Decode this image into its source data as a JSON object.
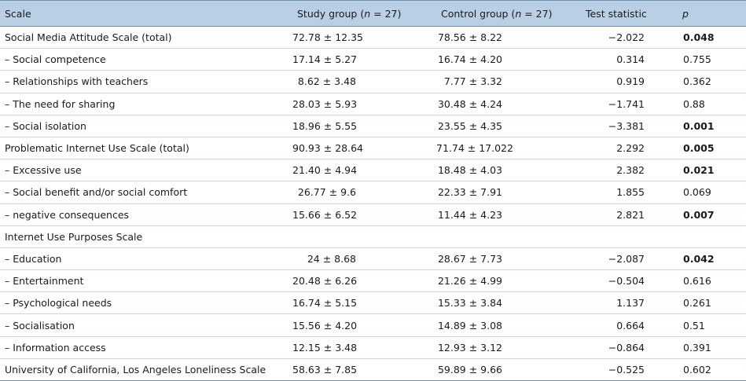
{
  "table": {
    "headers": {
      "scale": "Scale",
      "study": "Study group (",
      "study_n": "n",
      "study_suffix": " = 27)",
      "control": "Control group (",
      "control_n": "n",
      "control_suffix": " = 27)",
      "stat": "Test statistic",
      "p": "p"
    },
    "rows": [
      {
        "scale": "Social Media Attitude Scale (total)",
        "study": "72.78 ± 12.35",
        "control": "78.56 ± 8.22",
        "stat": "−2.022",
        "p": "0.048",
        "bold": true,
        "group": true
      },
      {
        "scale": "– Social competence",
        "study": "17.14 ± 5.27",
        "control": "16.74 ± 4.20",
        "stat": "0.314",
        "p": "0.755",
        "bold": false,
        "group": false
      },
      {
        "scale": "– Relationships with teachers",
        "study": "8.62 ± 3.48",
        "control": "7.77 ± 3.32",
        "stat": "0.919",
        "p": "0.362",
        "bold": false,
        "group": false
      },
      {
        "scale": "– The need for sharing",
        "study": "28.03 ± 5.93",
        "control": "30.48 ± 4.24",
        "stat": "−1.741",
        "p": "0.88",
        "bold": false,
        "group": false
      },
      {
        "scale": "– Social isolation",
        "study": "18.96 ± 5.55",
        "control": "23.55 ± 4.35",
        "stat": "−3.381",
        "p": "0.001",
        "bold": true,
        "group": false
      },
      {
        "scale": "Problematic Internet Use Scale (total)",
        "study": "90.93 ± 28.64",
        "control": "71.74 ± 17.022",
        "stat": "2.292",
        "p": "0.005",
        "bold": true,
        "group": true
      },
      {
        "scale": "– Excessive use",
        "study": "21.40 ± 4.94",
        "control": "18.48 ± 4.03",
        "stat": "2.382",
        "p": "0.021",
        "bold": true,
        "group": false
      },
      {
        "scale": "– Social benefit and/or social comfort",
        "study": "26.77 ± 9.6",
        "control": "22.33 ± 7.91",
        "stat": "1.855",
        "p": "0.069",
        "bold": false,
        "group": false
      },
      {
        "scale": "– negative consequences",
        "study": "15.66 ± 6.52",
        "control": "11.44 ± 4.23",
        "stat": "2.821",
        "p": "0.007",
        "bold": true,
        "group": false
      },
      {
        "scale": "Internet Use Purposes Scale",
        "study": "",
        "control": "",
        "stat": "",
        "p": "",
        "bold": false,
        "group": true
      },
      {
        "scale": "– Education",
        "study": "24 ± 8.68",
        "control": "28.67 ± 7.73",
        "stat": "−2.087",
        "p": "0.042",
        "bold": true,
        "group": false
      },
      {
        "scale": "– Entertainment",
        "study": "20.48 ± 6.26",
        "control": "21.26 ± 4.99",
        "stat": "−0.504",
        "p": "0.616",
        "bold": false,
        "group": false
      },
      {
        "scale": "– Psychological needs",
        "study": "16.74 ± 5.15",
        "control": "15.33 ± 3.84",
        "stat": "1.137",
        "p": "0.261",
        "bold": false,
        "group": false
      },
      {
        "scale": "– Socialisation",
        "study": "15.56 ± 4.20",
        "control": "14.89 ± 3.08",
        "stat": "0.664",
        "p": "0.51",
        "bold": false,
        "group": false
      },
      {
        "scale": "– Information access",
        "study": "12.15 ± 3.48",
        "control": "12.93 ± 3.12",
        "stat": "−0.864",
        "p": "0.391",
        "bold": false,
        "group": false
      },
      {
        "scale": "University of California, Los Angeles Loneliness Scale",
        "study": "58.63 ± 7.85",
        "control": "59.89 ± 9.66",
        "stat": "−0.525",
        "p": "0.602",
        "bold": false,
        "group": true
      }
    ]
  }
}
